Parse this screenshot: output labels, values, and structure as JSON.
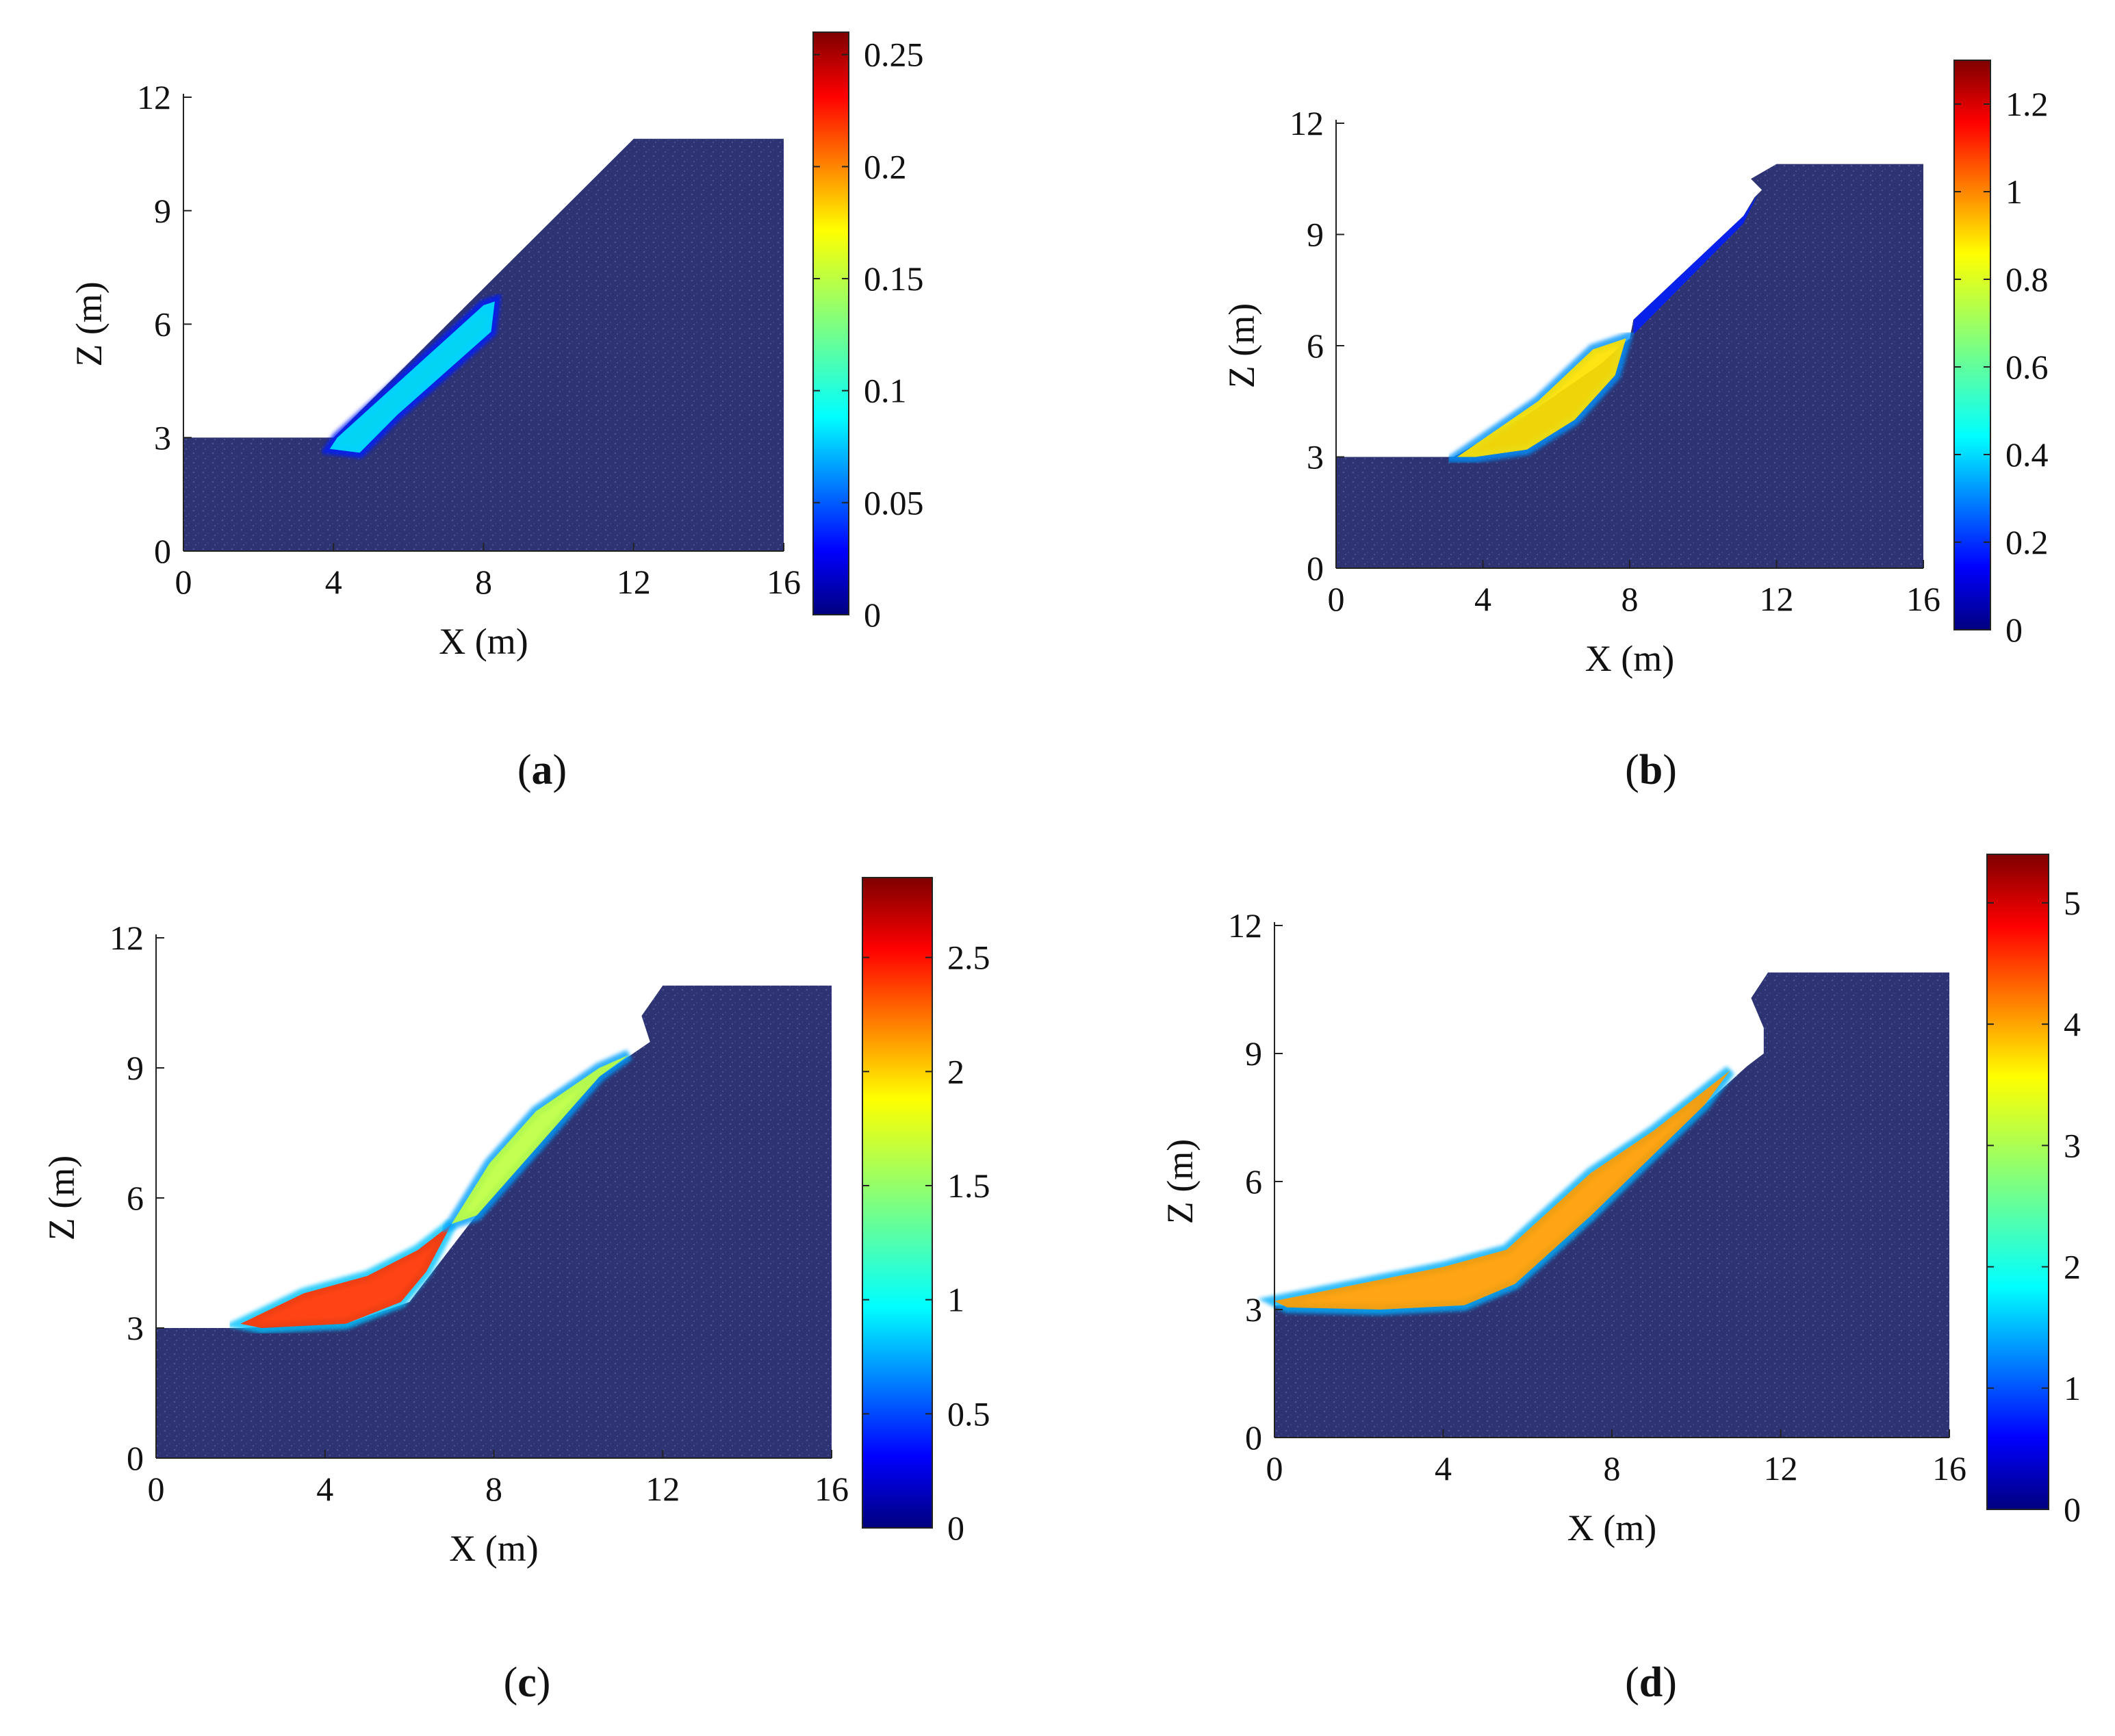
{
  "figure": {
    "description_colors": {
      "soil": "#2e3473",
      "soil_grain": "#4a5190",
      "axis": "#222222"
    },
    "colormap": "jet"
  },
  "chart_data": [
    {
      "type": "heatmap",
      "panel_label_open": "(",
      "panel_letter": "a",
      "panel_label_close": ")",
      "xlabel": "X (m)",
      "ylabel": "Z (m)",
      "xlim": [
        0,
        16
      ],
      "ylim": [
        0,
        12
      ],
      "xticks": [
        "0",
        "4",
        "8",
        "12",
        "16"
      ],
      "yticks": [
        "0",
        "3",
        "6",
        "9",
        "12"
      ],
      "colorbar": {
        "min": 0,
        "max": 0.26,
        "ticks": [
          "0",
          "0.05",
          "0.1",
          "0.15",
          "0.2",
          "0.25"
        ],
        "tick_values": [
          0,
          0.05,
          0.1,
          0.15,
          0.2,
          0.25
        ]
      },
      "slope_profile": [
        [
          0,
          3
        ],
        [
          4,
          3
        ],
        [
          12,
          10.9
        ],
        [
          16,
          10.9
        ],
        [
          16,
          0
        ],
        [
          0,
          0
        ]
      ],
      "sliding_mass": [
        {
          "polygon": [
            [
              4.1,
              3
            ],
            [
              8,
              6.5
            ],
            [
              8.3,
              6.6
            ],
            [
              8.2,
              5.8
            ],
            [
              5.7,
              3.6
            ],
            [
              4.7,
              2.6
            ],
            [
              3.9,
              2.7
            ]
          ],
          "value": 0.09,
          "edge_value": 0.04
        }
      ],
      "upper_region": null
    },
    {
      "type": "heatmap",
      "panel_label_open": "(",
      "panel_letter": "b",
      "panel_label_close": ")",
      "xlabel": "X (m)",
      "ylabel": "Z (m)",
      "xlim": [
        0,
        16
      ],
      "ylim": [
        0,
        12
      ],
      "xticks": [
        "0",
        "4",
        "8",
        "12",
        "16"
      ],
      "yticks": [
        "0",
        "3",
        "6",
        "9",
        "12"
      ],
      "colorbar": {
        "min": 0,
        "max": 1.3,
        "ticks": [
          "0",
          "0.2",
          "0.4",
          "0.6",
          "0.8",
          "1",
          "1.2"
        ],
        "tick_values": [
          0,
          0.2,
          0.4,
          0.6,
          0.8,
          1.0,
          1.2
        ]
      },
      "slope_profile": [
        [
          0,
          3
        ],
        [
          3.2,
          3
        ],
        [
          5.3,
          4.2
        ],
        [
          7.2,
          5.5
        ],
        [
          8,
          6.2
        ],
        [
          8.1,
          6.7
        ],
        [
          11.1,
          9.5
        ],
        [
          11.4,
          10.0
        ],
        [
          11.6,
          10.2
        ],
        [
          11.3,
          10.5
        ],
        [
          12,
          10.9
        ],
        [
          16,
          10.9
        ],
        [
          16,
          0
        ],
        [
          0,
          0
        ]
      ],
      "sliding_mass": [
        {
          "polygon": [
            [
              3.3,
              3.0
            ],
            [
              5.5,
              4.5
            ],
            [
              7.0,
              5.9
            ],
            [
              7.9,
              6.2
            ],
            [
              7.6,
              5.2
            ],
            [
              6.5,
              4.0
            ],
            [
              5.2,
              3.2
            ],
            [
              3.8,
              3.0
            ]
          ],
          "value": 0.85,
          "edge_value": 0.35
        }
      ],
      "upper_region": {
        "polygon": [
          [
            8.1,
            6.7
          ],
          [
            11.1,
            9.5
          ],
          [
            11.5,
            10.1
          ],
          [
            11.1,
            9.3
          ],
          [
            8.1,
            6.3
          ]
        ],
        "value": 0.2
      }
    },
    {
      "type": "heatmap",
      "panel_label_open": "(",
      "panel_letter": "c",
      "panel_label_close": ")",
      "xlabel": "X (m)",
      "ylabel": "Z (m)",
      "xlim": [
        0,
        16
      ],
      "ylim": [
        0,
        12
      ],
      "xticks": [
        "0",
        "4",
        "8",
        "12",
        "16"
      ],
      "yticks": [
        "0",
        "3",
        "6",
        "9",
        "12"
      ],
      "colorbar": {
        "min": 0,
        "max": 2.85,
        "ticks": [
          "0",
          "0.5",
          "1",
          "1.5",
          "2",
          "2.5"
        ],
        "tick_values": [
          0,
          0.5,
          1.0,
          1.5,
          2.0,
          2.5
        ]
      },
      "slope_profile": [
        [
          0,
          3
        ],
        [
          2.0,
          3
        ],
        [
          4.5,
          3.1
        ],
        [
          6.0,
          3.6
        ],
        [
          7.5,
          5.5
        ],
        [
          10.5,
          8.8
        ],
        [
          11.4,
          9.4
        ],
        [
          11.7,
          9.6
        ],
        [
          11.5,
          10.2
        ],
        [
          12,
          10.9
        ],
        [
          16,
          10.9
        ],
        [
          16,
          0
        ],
        [
          0,
          0
        ]
      ],
      "sliding_mass": [
        {
          "polygon": [
            [
              2.0,
              3.1
            ],
            [
              3.5,
              3.8
            ],
            [
              5.0,
              4.2
            ],
            [
              6.2,
              4.8
            ],
            [
              7.0,
              5.4
            ],
            [
              6.4,
              4.3
            ],
            [
              5.8,
              3.6
            ],
            [
              4.5,
              3.1
            ],
            [
              2.5,
              3.0
            ]
          ],
          "value": 2.35,
          "edge_value": 0.9
        },
        {
          "polygon": [
            [
              7.0,
              5.4
            ],
            [
              7.9,
              6.8
            ],
            [
              9.0,
              8.0
            ],
            [
              10.5,
              9.0
            ],
            [
              11.2,
              9.3
            ],
            [
              10.5,
              8.8
            ],
            [
              7.6,
              5.6
            ]
          ],
          "value": 1.6,
          "edge_value": 0.8
        }
      ],
      "upper_region": null
    },
    {
      "type": "heatmap",
      "panel_label_open": "(",
      "panel_letter": "d",
      "panel_label_close": ")",
      "xlabel": "X (m)",
      "ylabel": "Z (m)",
      "xlim": [
        0,
        16
      ],
      "ylim": [
        0,
        12
      ],
      "xticks": [
        "0",
        "4",
        "8",
        "12",
        "16"
      ],
      "yticks": [
        "0",
        "3",
        "6",
        "9",
        "12"
      ],
      "colorbar": {
        "min": 0,
        "max": 5.4,
        "ticks": [
          "0",
          "1",
          "2",
          "3",
          "4",
          "5"
        ],
        "tick_values": [
          0,
          1,
          2,
          3,
          4,
          5
        ]
      },
      "slope_profile": [
        [
          0,
          3.1
        ],
        [
          2.5,
          3.0
        ],
        [
          4.5,
          3.1
        ],
        [
          5.7,
          3.6
        ],
        [
          7.5,
          5.2
        ],
        [
          10.2,
          7.8
        ],
        [
          11.2,
          8.7
        ],
        [
          11.6,
          9.0
        ],
        [
          11.6,
          9.6
        ],
        [
          11.3,
          10.3
        ],
        [
          11.7,
          10.9
        ],
        [
          16,
          10.9
        ],
        [
          16,
          0
        ],
        [
          0,
          0
        ]
      ],
      "sliding_mass": [
        {
          "polygon": [
            [
              0.0,
              3.2
            ],
            [
              2.0,
              3.6
            ],
            [
              4.0,
              4.0
            ],
            [
              5.5,
              4.4
            ],
            [
              6.5,
              5.3
            ],
            [
              7.5,
              6.2
            ],
            [
              9.0,
              7.2
            ],
            [
              10.8,
              8.6
            ],
            [
              10.2,
              7.8
            ],
            [
              7.5,
              5.2
            ],
            [
              5.7,
              3.6
            ],
            [
              4.5,
              3.1
            ],
            [
              2.5,
              3.0
            ],
            [
              0.3,
              3.05
            ]
          ],
          "value": 3.9,
          "edge_value": 1.6
        }
      ],
      "upper_region": null
    }
  ]
}
